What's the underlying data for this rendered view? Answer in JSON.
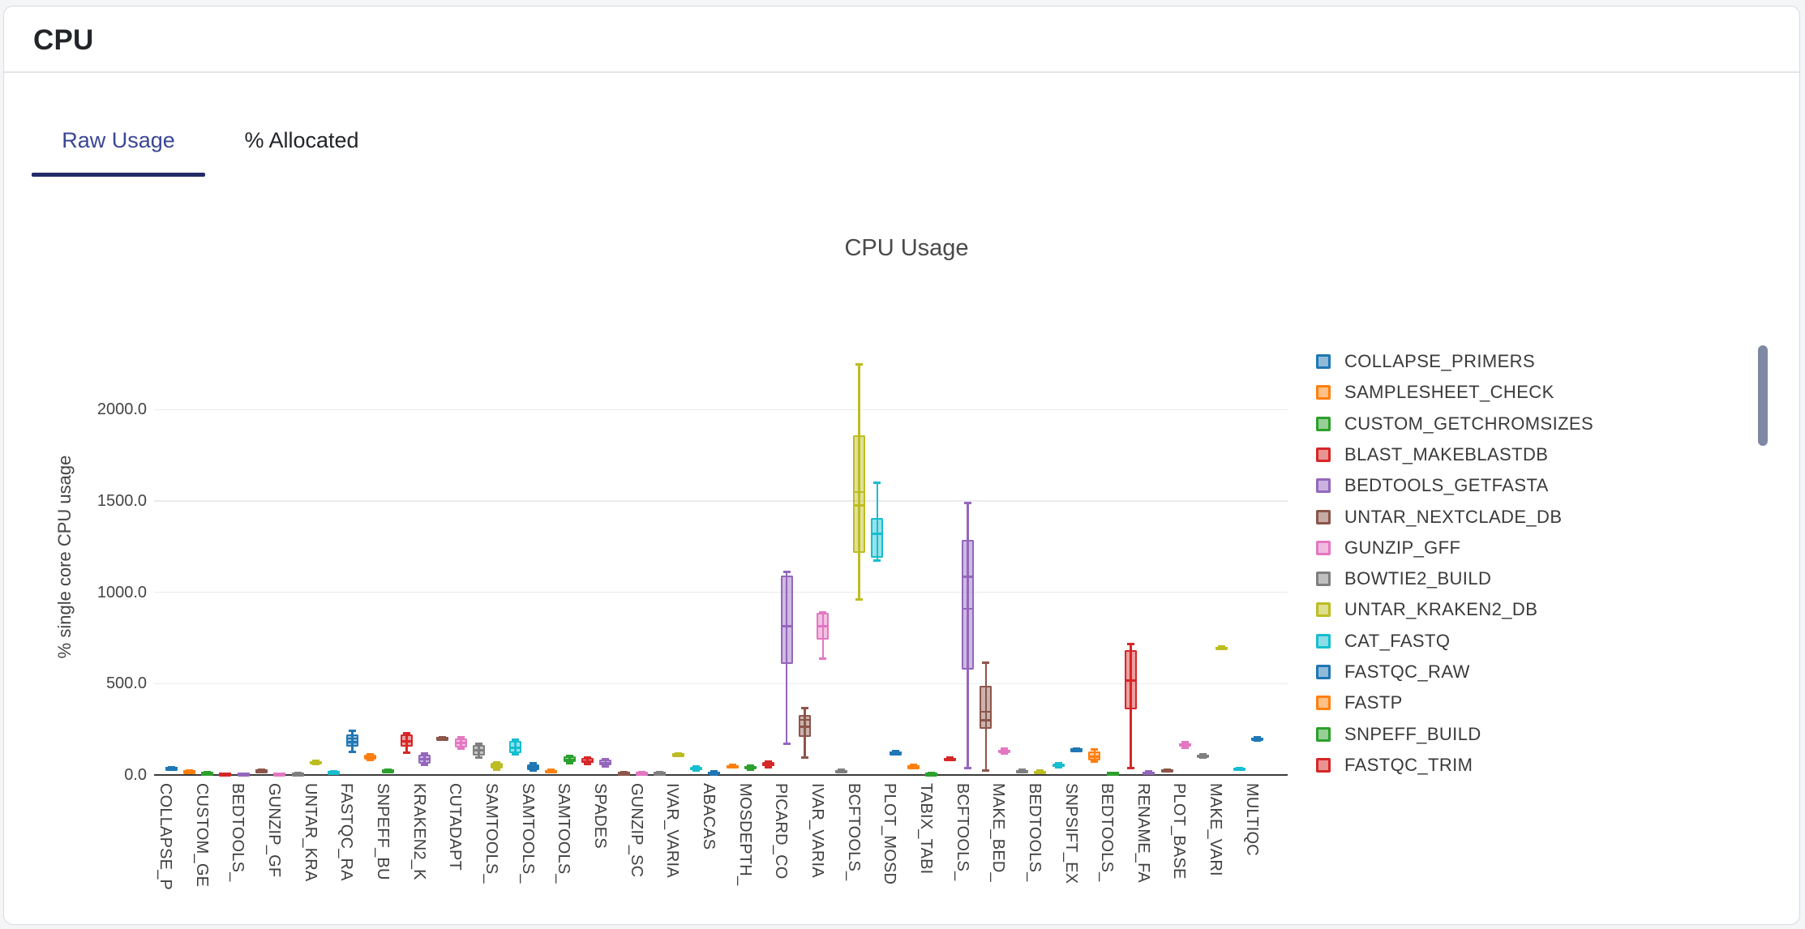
{
  "header": {
    "title": "CPU"
  },
  "tabs": {
    "raw": "Raw Usage",
    "allocated": "% Allocated"
  },
  "colors": {
    "tab_active_text": "#3a4694",
    "tab_underline": "#242b66",
    "scrollbar_thumb": "#7f89a3",
    "axis_line": "#3b3b3b",
    "grid_line": "#eaebee"
  },
  "chart_data": {
    "type": "box",
    "title": "CPU Usage",
    "xlabel": "",
    "ylabel": "% single core CPU usage",
    "ylim": [
      0,
      2475
    ],
    "grid": true,
    "legend_position": "right",
    "yticks": [
      {
        "v": 0,
        "label": "0.0"
      },
      {
        "v": 500,
        "label": "500.0"
      },
      {
        "v": 1000,
        "label": "1000.0"
      },
      {
        "v": 1500,
        "label": "1500.0"
      },
      {
        "v": 2000,
        "label": "2000.0"
      }
    ],
    "palette": [
      "#1f77b4",
      "#ff7f0e",
      "#2ca02c",
      "#d62728",
      "#9467bd",
      "#8c564b",
      "#e377c2",
      "#7f7f7f",
      "#bcbd22",
      "#17becf"
    ],
    "color_rule": "box at index i uses palette[i % 10]; axis labels appear under every 2nd box",
    "legend_items": [
      "COLLAPSE_PRIMERS",
      "SAMPLESHEET_CHECK",
      "CUSTOM_GETCHROMSIZES",
      "BLAST_MAKEBLASTDB",
      "BEDTOOLS_GETFASTA",
      "UNTAR_NEXTCLADE_DB",
      "GUNZIP_GFF",
      "BOWTIE2_BUILD",
      "UNTAR_KRAKEN2_DB",
      "CAT_FASTQ",
      "FASTQC_RAW",
      "FASTP",
      "SNPEFF_BUILD",
      "FASTQC_TRIM"
    ],
    "x_tick_labels": [
      "COLLAPSE_P",
      "CUSTOM_GE",
      "BEDTOOLS_",
      "GUNZIP_GF",
      "UNTAR_KRA",
      "FASTQC_RA",
      "SNPEFF_BU",
      "KRAKEN2_K",
      "CUTADAPT",
      "SAMTOOLS_",
      "SAMTOOLS_",
      "SAMTOOLS_",
      "SPADES",
      "GUNZIP_SC",
      "IVAR_VARIA",
      "ABACAS",
      "MOSDEPTH_",
      "PICARD_CO",
      "IVAR_VARIA",
      "BCFTOOLS_",
      "PLOT_MOSD",
      "TABIX_TABI",
      "BCFTOOLS_",
      "MAKE_BED_",
      "BEDTOOLS_",
      "SNPSIFT_EX",
      "BEDTOOLS_",
      "RENAME_FA",
      "PLOT_BASE",
      "MAKE_VARI",
      "MULTIQC"
    ],
    "boxes_format": "[low_whisker, q1, median, q3, high_whisker, mean(optional)] in % single-core CPU",
    "boxes": [
      [
        30,
        33,
        36,
        40,
        43
      ],
      [
        14,
        17,
        20,
        23,
        26
      ],
      [
        7,
        10,
        12,
        15,
        18
      ],
      [
        3,
        5,
        7,
        9,
        11
      ],
      [
        2,
        4,
        6,
        8,
        10
      ],
      [
        17,
        20,
        23,
        26,
        29
      ],
      [
        1,
        3,
        5,
        7,
        9
      ],
      [
        4,
        6,
        8,
        10,
        12
      ],
      [
        58,
        64,
        70,
        76,
        82
      ],
      [
        9,
        12,
        15,
        18,
        21
      ],
      [
        125,
        155,
        180,
        222,
        245,
        200
      ],
      [
        78,
        85,
        97,
        110,
        117
      ],
      [
        18,
        22,
        25,
        28,
        32
      ],
      [
        118,
        155,
        185,
        222,
        230
      ],
      [
        52,
        60,
        85,
        110,
        118
      ],
      [
        190,
        195,
        200,
        205,
        210
      ],
      [
        142,
        150,
        175,
        200,
        208
      ],
      [
        95,
        105,
        135,
        163,
        172
      ],
      [
        28,
        35,
        50,
        65,
        72
      ],
      [
        110,
        120,
        150,
        185,
        195
      ],
      [
        20,
        28,
        43,
        58,
        66
      ],
      [
        12,
        17,
        22,
        28,
        33
      ],
      [
        60,
        70,
        80,
        100,
        105
      ],
      [
        56,
        66,
        75,
        93,
        98
      ],
      [
        45,
        55,
        64,
        83,
        88
      ],
      [
        5,
        8,
        11,
        15,
        18
      ],
      [
        2,
        6,
        10,
        15,
        19
      ],
      [
        5,
        8,
        11,
        15,
        18
      ],
      [
        100,
        105,
        111,
        117,
        122
      ],
      [
        20,
        25,
        32,
        45,
        50
      ],
      [
        2,
        7,
        12,
        18,
        22
      ],
      [
        38,
        43,
        48,
        54,
        58
      ],
      [
        28,
        34,
        40,
        48,
        52
      ],
      [
        42,
        50,
        57,
        70,
        74
      ],
      [
        170,
        610,
        815,
        1090,
        1112
      ],
      [
        95,
        210,
        265,
        330,
        367,
        300
      ],
      [
        635,
        742,
        815,
        886,
        890
      ],
      [
        12,
        17,
        22,
        27,
        32
      ],
      [
        960,
        1215,
        1475,
        1860,
        2250,
        1550
      ],
      [
        1173,
        1190,
        1320,
        1407,
        1603
      ],
      [
        110,
        115,
        120,
        126,
        132
      ],
      [
        36,
        41,
        46,
        51,
        56
      ],
      [
        2,
        5,
        8,
        11,
        14
      ],
      [
        80,
        84,
        88,
        93,
        98
      ],
      [
        35,
        576,
        1085,
        1285,
        1490,
        910
      ],
      [
        20,
        255,
        300,
        488,
        616,
        345
      ],
      [
        116,
        123,
        130,
        138,
        145
      ],
      [
        13,
        17,
        21,
        25,
        29
      ],
      [
        9,
        13,
        17,
        21,
        25
      ],
      [
        40,
        46,
        53,
        60,
        67
      ],
      [
        128,
        133,
        138,
        143,
        148
      ],
      [
        70,
        82,
        100,
        130,
        140
      ],
      [
        3,
        6,
        9,
        12,
        15
      ],
      [
        35,
        360,
        515,
        682,
        718
      ],
      [
        6,
        9,
        13,
        17,
        20
      ],
      [
        17,
        21,
        25,
        29,
        33
      ],
      [
        148,
        157,
        166,
        175,
        184
      ],
      [
        92,
        97,
        103,
        109,
        114
      ],
      [
        688,
        692,
        696,
        700,
        704
      ],
      [
        26,
        30,
        34,
        38,
        42
      ],
      [
        186,
        191,
        197,
        203,
        208
      ]
    ]
  }
}
